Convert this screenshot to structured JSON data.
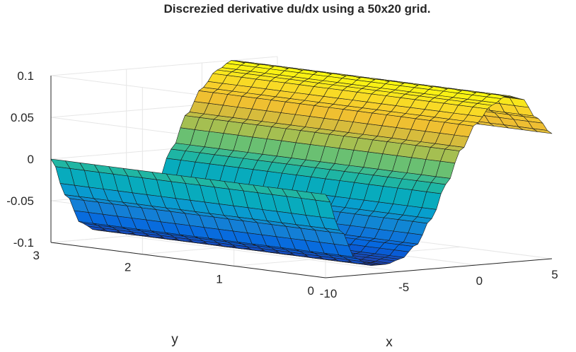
{
  "chart_data": {
    "type": "surface",
    "title": "Discrezied derivative du/dx using a 50x20 grid.",
    "xlabel": "x",
    "ylabel": "y",
    "zlabel": "",
    "xlim": [
      -10,
      5
    ],
    "ylim": [
      0,
      3
    ],
    "zlim": [
      -0.1,
      0.1
    ],
    "x_ticks": [
      "-10",
      "-5",
      "0",
      "5"
    ],
    "y_ticks": [
      "0",
      "1",
      "2",
      "3"
    ],
    "z_ticks": [
      "-0.1",
      "-0.05",
      "0",
      "0.05",
      "0.1"
    ],
    "grid": {
      "nx": 50,
      "ny": 20
    },
    "grid_lines": true,
    "colormap": "parula",
    "surface_profile_x": [
      -10,
      -9,
      -8,
      -7,
      -6,
      -5,
      -4,
      -3,
      -2,
      -1,
      0,
      1,
      2,
      3,
      4,
      5
    ],
    "surface_profile_dudx": [
      0,
      -0.045,
      -0.08,
      -0.09,
      -0.09,
      -0.085,
      -0.07,
      -0.04,
      0.0,
      0.04,
      0.07,
      0.09,
      0.1,
      0.095,
      0.07,
      0.05
    ]
  }
}
